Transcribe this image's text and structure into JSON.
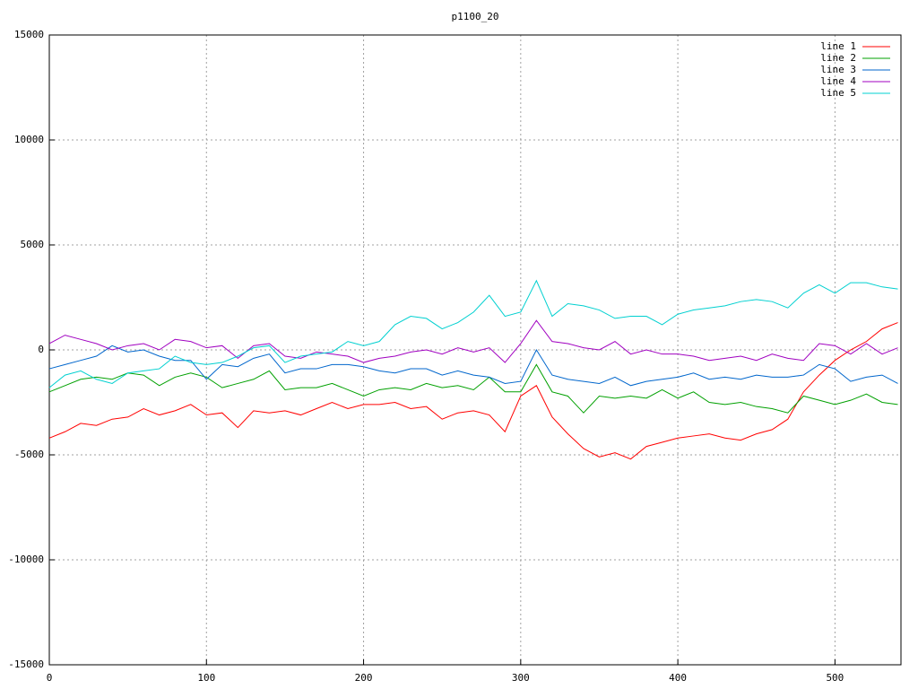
{
  "chart_data": {
    "type": "line",
    "title": "p1100_20",
    "x": [
      0,
      10,
      20,
      30,
      40,
      50,
      60,
      70,
      80,
      90,
      100,
      110,
      120,
      130,
      140,
      150,
      160,
      170,
      180,
      190,
      200,
      210,
      220,
      230,
      240,
      250,
      260,
      270,
      280,
      290,
      300,
      310,
      320,
      330,
      340,
      350,
      360,
      370,
      380,
      390,
      400,
      410,
      420,
      430,
      440,
      450,
      460,
      470,
      480,
      490,
      500,
      510,
      520,
      530,
      540
    ],
    "series": [
      {
        "name": "line 1",
        "color": "#ff0000",
        "values": [
          -4200,
          -3900,
          -3500,
          -3600,
          -3300,
          -3200,
          -2800,
          -3100,
          -2900,
          -2600,
          -3100,
          -3000,
          -3700,
          -2900,
          -3000,
          -2900,
          -3100,
          -2800,
          -2500,
          -2800,
          -2600,
          -2600,
          -2500,
          -2800,
          -2700,
          -3300,
          -3000,
          -2900,
          -3100,
          -3900,
          -2200,
          -1700,
          -3200,
          -4000,
          -4700,
          -5100,
          -4900,
          -5200,
          -4600,
          -4400,
          -4200,
          -4100,
          -4000,
          -4200,
          -4300,
          -4000,
          -3800,
          -3300,
          -2000,
          -1200,
          -500,
          0,
          400,
          1000,
          1300
        ]
      },
      {
        "name": "line 2",
        "color": "#00a000",
        "values": [
          -2000,
          -1700,
          -1400,
          -1300,
          -1400,
          -1100,
          -1200,
          -1700,
          -1300,
          -1100,
          -1300,
          -1800,
          -1600,
          -1400,
          -1000,
          -1900,
          -1800,
          -1800,
          -1600,
          -1900,
          -2200,
          -1900,
          -1800,
          -1900,
          -1600,
          -1800,
          -1700,
          -1900,
          -1300,
          -2000,
          -2000,
          -700,
          -2000,
          -2200,
          -3000,
          -2200,
          -2300,
          -2200,
          -2300,
          -1900,
          -2300,
          -2000,
          -2500,
          -2600,
          -2500,
          -2700,
          -2800,
          -3000,
          -2200,
          -2400,
          -2600,
          -2400,
          -2100,
          -2500,
          -2600
        ]
      },
      {
        "name": "line 3",
        "color": "#0066cc",
        "values": [
          -900,
          -700,
          -500,
          -300,
          200,
          -100,
          0,
          -300,
          -500,
          -500,
          -1400,
          -700,
          -800,
          -400,
          -200,
          -1100,
          -900,
          -900,
          -700,
          -700,
          -800,
          -1000,
          -1100,
          -900,
          -900,
          -1200,
          -1000,
          -1200,
          -1300,
          -1600,
          -1500,
          0,
          -1200,
          -1400,
          -1500,
          -1600,
          -1300,
          -1700,
          -1500,
          -1400,
          -1300,
          -1100,
          -1400,
          -1300,
          -1400,
          -1200,
          -1300,
          -1300,
          -1200,
          -700,
          -900,
          -1500,
          -1300,
          -1200,
          -1600
        ]
      },
      {
        "name": "line 4",
        "color": "#a000c0",
        "values": [
          300,
          700,
          500,
          300,
          0,
          200,
          300,
          0,
          500,
          400,
          100,
          200,
          -400,
          200,
          300,
          -300,
          -400,
          -100,
          -200,
          -300,
          -600,
          -400,
          -300,
          -100,
          0,
          -200,
          100,
          -100,
          100,
          -600,
          300,
          1400,
          400,
          300,
          100,
          0,
          400,
          -200,
          0,
          -200,
          -200,
          -300,
          -500,
          -400,
          -300,
          -500,
          -200,
          -400,
          -500,
          300,
          200,
          -200,
          300,
          -200,
          100
        ]
      },
      {
        "name": "line 5",
        "color": "#00d0d0",
        "values": [
          -1800,
          -1200,
          -1000,
          -1400,
          -1600,
          -1100,
          -1000,
          -900,
          -300,
          -600,
          -700,
          -600,
          -300,
          100,
          200,
          -600,
          -300,
          -200,
          -100,
          400,
          200,
          400,
          1200,
          1600,
          1500,
          1000,
          1300,
          1800,
          2600,
          1600,
          1800,
          3300,
          1600,
          2200,
          2100,
          1900,
          1500,
          1600,
          1600,
          1200,
          1700,
          1900,
          2000,
          2100,
          2300,
          2400,
          2300,
          2000,
          2700,
          3100,
          2700,
          3200,
          3200,
          3000,
          2900
        ]
      }
    ],
    "xlim": [
      0,
      542
    ],
    "xticks": [
      0,
      100,
      200,
      300,
      400,
      500
    ],
    "ylim": [
      -15000,
      15000
    ],
    "yticks": [
      -15000,
      -10000,
      -5000,
      0,
      5000,
      10000,
      15000
    ],
    "grid": true,
    "legend": "top-right"
  }
}
